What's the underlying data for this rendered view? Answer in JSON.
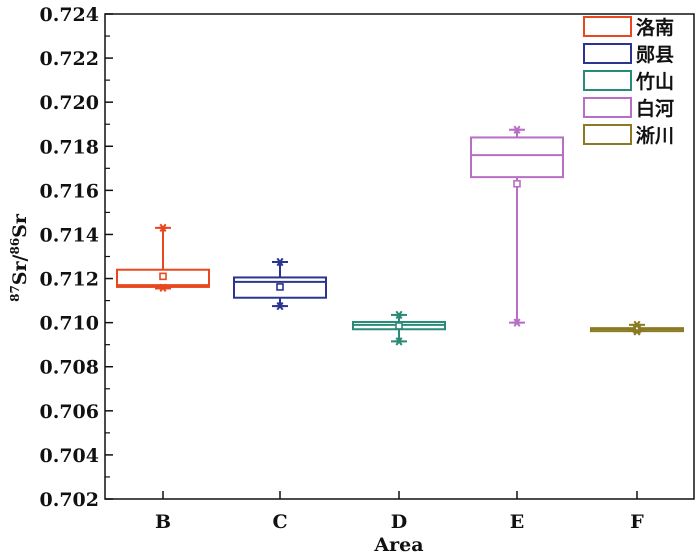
{
  "chart_data": {
    "type": "box",
    "title": "",
    "xlabel": "Area",
    "ylabel": "87Sr/86Sr",
    "ylabel_parts": {
      "sup1": "87",
      "base1": "Sr/",
      "sup2": "86",
      "base2": "Sr"
    },
    "ylim": [
      0.702,
      0.724
    ],
    "yticks": [
      "0.702",
      "0.704",
      "0.706",
      "0.708",
      "0.710",
      "0.712",
      "0.714",
      "0.716",
      "0.718",
      "0.720",
      "0.722",
      "0.724"
    ],
    "categories": [
      "B",
      "C",
      "D",
      "E",
      "F"
    ],
    "series": [
      {
        "name": "洛南",
        "category": "B",
        "color": "#e8471f",
        "min": 0.71155,
        "q1": 0.71162,
        "median": 0.7117,
        "q3": 0.7124,
        "max": 0.7143,
        "mean": 0.7121,
        "outliers": [
          0.7143,
          0.71158
        ]
      },
      {
        "name": "郧县",
        "category": "C",
        "color": "#2b3590",
        "min": 0.71075,
        "q1": 0.71113,
        "median": 0.71185,
        "q3": 0.71205,
        "max": 0.71275,
        "mean": 0.71162,
        "outliers": [
          0.71275,
          0.71075
        ]
      },
      {
        "name": "竹山",
        "category": "D",
        "color": "#2a8a78",
        "min": 0.70915,
        "q1": 0.7097,
        "median": 0.7099,
        "q3": 0.71003,
        "max": 0.71035,
        "mean": 0.70985,
        "outliers": [
          0.71035,
          0.70915
        ]
      },
      {
        "name": "白河",
        "category": "E",
        "color": "#b76ec4",
        "min": 0.71,
        "q1": 0.7166,
        "median": 0.7176,
        "q3": 0.7184,
        "max": 0.71875,
        "mean": 0.7163,
        "outliers": [
          0.71875,
          0.71
        ]
      },
      {
        "name": "淅川",
        "category": "F",
        "color": "#8a7a22",
        "min": 0.70962,
        "q1": 0.70965,
        "median": 0.7097,
        "q3": 0.70975,
        "max": 0.7099,
        "mean": 0.70968,
        "outliers": [
          0.7099,
          0.7096
        ]
      }
    ],
    "legend_position": "top-right"
  }
}
